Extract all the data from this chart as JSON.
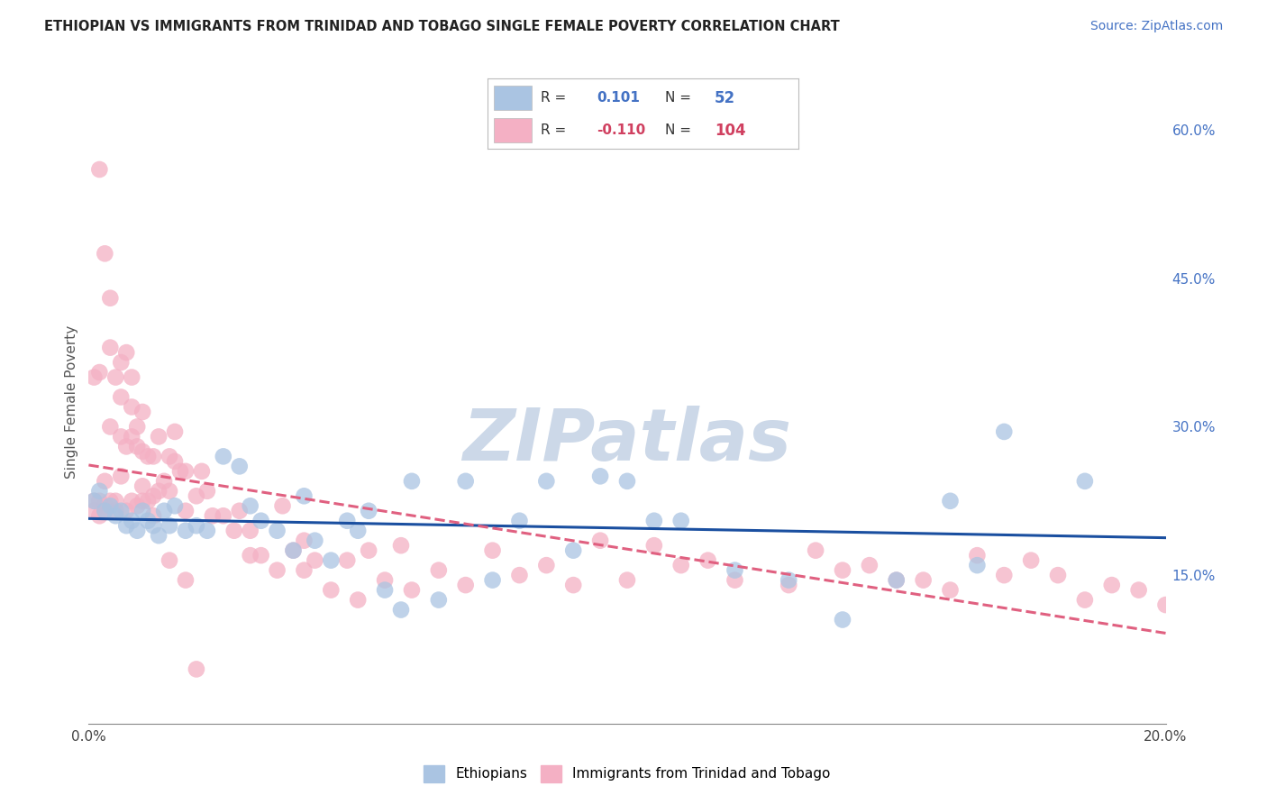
{
  "title": "ETHIOPIAN VS IMMIGRANTS FROM TRINIDAD AND TOBAGO SINGLE FEMALE POVERTY CORRELATION CHART",
  "source": "Source: ZipAtlas.com",
  "ylabel": "Single Female Poverty",
  "xlim": [
    0.0,
    0.2
  ],
  "ylim": [
    0.0,
    0.65
  ],
  "R_ethiopians": 0.101,
  "N_ethiopians": 52,
  "R_trinidad": -0.11,
  "N_trinidad": 104,
  "color_ethiopians": "#aac4e2",
  "color_trinidad": "#f4b0c4",
  "color_line_ethiopians": "#1a4fa0",
  "color_line_trinidad": "#e06080",
  "background_color": "#ffffff",
  "grid_color": "#c8c8c8",
  "watermark_color": "#ccd8e8",
  "ethiopians_x": [
    0.001,
    0.002,
    0.003,
    0.004,
    0.005,
    0.006,
    0.007,
    0.008,
    0.009,
    0.01,
    0.011,
    0.012,
    0.013,
    0.014,
    0.015,
    0.016,
    0.018,
    0.02,
    0.022,
    0.025,
    0.028,
    0.03,
    0.032,
    0.035,
    0.038,
    0.04,
    0.042,
    0.045,
    0.048,
    0.05,
    0.052,
    0.055,
    0.058,
    0.06,
    0.065,
    0.07,
    0.075,
    0.08,
    0.085,
    0.09,
    0.095,
    0.1,
    0.105,
    0.11,
    0.12,
    0.13,
    0.14,
    0.15,
    0.16,
    0.165,
    0.17,
    0.185
  ],
  "ethiopians_y": [
    0.225,
    0.235,
    0.215,
    0.22,
    0.21,
    0.215,
    0.2,
    0.205,
    0.195,
    0.215,
    0.205,
    0.2,
    0.19,
    0.215,
    0.2,
    0.22,
    0.195,
    0.2,
    0.195,
    0.27,
    0.26,
    0.22,
    0.205,
    0.195,
    0.175,
    0.23,
    0.185,
    0.165,
    0.205,
    0.195,
    0.215,
    0.135,
    0.115,
    0.245,
    0.125,
    0.245,
    0.145,
    0.205,
    0.245,
    0.175,
    0.25,
    0.245,
    0.205,
    0.205,
    0.155,
    0.145,
    0.105,
    0.145,
    0.225,
    0.16,
    0.295,
    0.245
  ],
  "trinidad_x": [
    0.001,
    0.001,
    0.001,
    0.002,
    0.002,
    0.002,
    0.003,
    0.003,
    0.003,
    0.004,
    0.004,
    0.004,
    0.005,
    0.005,
    0.005,
    0.006,
    0.006,
    0.006,
    0.007,
    0.007,
    0.007,
    0.008,
    0.008,
    0.008,
    0.009,
    0.009,
    0.009,
    0.01,
    0.01,
    0.01,
    0.011,
    0.011,
    0.012,
    0.012,
    0.013,
    0.013,
    0.014,
    0.015,
    0.015,
    0.016,
    0.016,
    0.017,
    0.018,
    0.018,
    0.02,
    0.021,
    0.022,
    0.023,
    0.025,
    0.027,
    0.028,
    0.03,
    0.03,
    0.032,
    0.035,
    0.036,
    0.038,
    0.04,
    0.04,
    0.042,
    0.045,
    0.048,
    0.05,
    0.052,
    0.055,
    0.058,
    0.06,
    0.065,
    0.07,
    0.075,
    0.08,
    0.085,
    0.09,
    0.095,
    0.1,
    0.105,
    0.11,
    0.115,
    0.12,
    0.13,
    0.135,
    0.14,
    0.145,
    0.15,
    0.155,
    0.16,
    0.165,
    0.17,
    0.175,
    0.18,
    0.185,
    0.19,
    0.195,
    0.2,
    0.002,
    0.003,
    0.004,
    0.006,
    0.008,
    0.01,
    0.012,
    0.015,
    0.018,
    0.02
  ],
  "trinidad_y": [
    0.225,
    0.215,
    0.35,
    0.21,
    0.225,
    0.355,
    0.22,
    0.215,
    0.245,
    0.225,
    0.3,
    0.38,
    0.225,
    0.215,
    0.35,
    0.25,
    0.29,
    0.33,
    0.215,
    0.28,
    0.375,
    0.225,
    0.29,
    0.35,
    0.22,
    0.28,
    0.3,
    0.225,
    0.275,
    0.315,
    0.225,
    0.27,
    0.27,
    0.23,
    0.235,
    0.29,
    0.245,
    0.27,
    0.235,
    0.265,
    0.295,
    0.255,
    0.255,
    0.215,
    0.23,
    0.255,
    0.235,
    0.21,
    0.21,
    0.195,
    0.215,
    0.195,
    0.17,
    0.17,
    0.155,
    0.22,
    0.175,
    0.155,
    0.185,
    0.165,
    0.135,
    0.165,
    0.125,
    0.175,
    0.145,
    0.18,
    0.135,
    0.155,
    0.14,
    0.175,
    0.15,
    0.16,
    0.14,
    0.185,
    0.145,
    0.18,
    0.16,
    0.165,
    0.145,
    0.14,
    0.175,
    0.155,
    0.16,
    0.145,
    0.145,
    0.135,
    0.17,
    0.15,
    0.165,
    0.15,
    0.125,
    0.14,
    0.135,
    0.12,
    0.56,
    0.475,
    0.43,
    0.365,
    0.32,
    0.24,
    0.21,
    0.165,
    0.145,
    0.055
  ]
}
